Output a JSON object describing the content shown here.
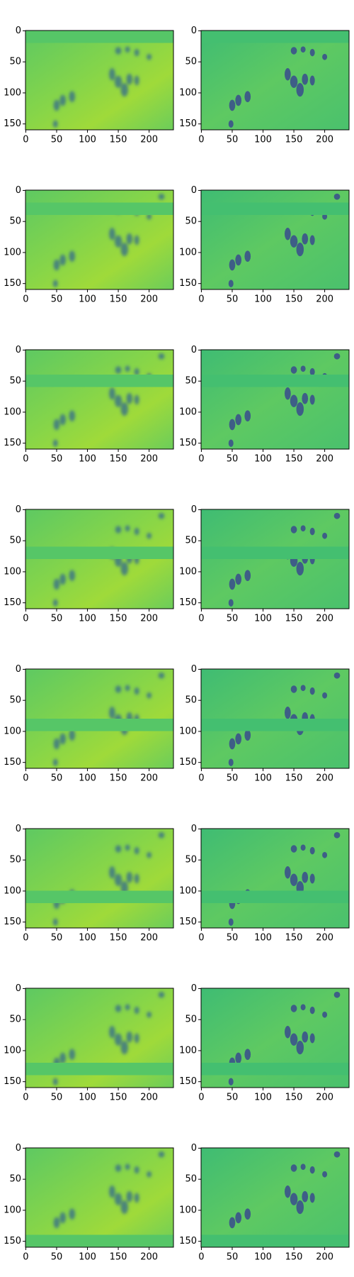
{
  "figure": {
    "xlim": [
      -0.5,
      239.5
    ],
    "ylim": [
      159.5,
      -0.5
    ],
    "xticks": [
      0,
      50,
      100,
      150,
      200
    ],
    "yticks": [
      0,
      50,
      100,
      150
    ]
  }
}
